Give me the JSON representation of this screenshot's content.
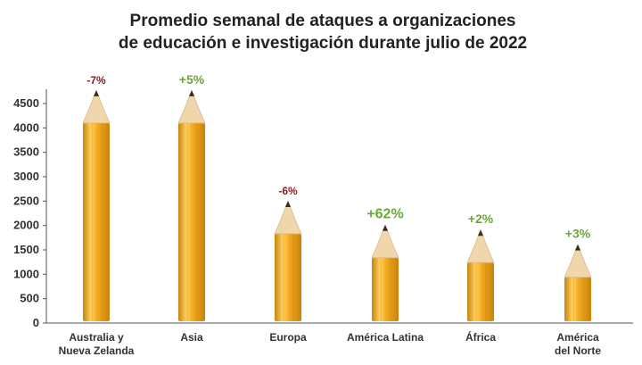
{
  "chart_data": {
    "type": "bar",
    "title": "Promedio semanal de ataques a organizaciones",
    "subtitle": "de educación e investigación durante julio de 2022",
    "categories": [
      [
        "Australia y",
        "Nueva Zelanda"
      ],
      [
        "Asia"
      ],
      [
        "Europa"
      ],
      [
        "América Latina"
      ],
      [
        "África"
      ],
      [
        "América",
        "del Norte"
      ]
    ],
    "values": [
      4100,
      4100,
      1830,
      1340,
      1240,
      940
    ],
    "changes": [
      "-7%",
      "+5%",
      "-6%",
      "+62%",
      "+2%",
      "+3%"
    ],
    "ylim": [
      0,
      4500
    ],
    "yticks": [
      0,
      500,
      1000,
      1500,
      2000,
      2500,
      3000,
      3500,
      4000,
      4500
    ],
    "grid": false,
    "colors": {
      "positive": "#6aa735",
      "negative": "#8b1a1a",
      "pencil_body": "#f2a81c",
      "pencil_dark": "#c8830e",
      "pencil_light": "#ffd260",
      "wood": "#f0d6ab",
      "lead": "#3a2a1a"
    }
  }
}
